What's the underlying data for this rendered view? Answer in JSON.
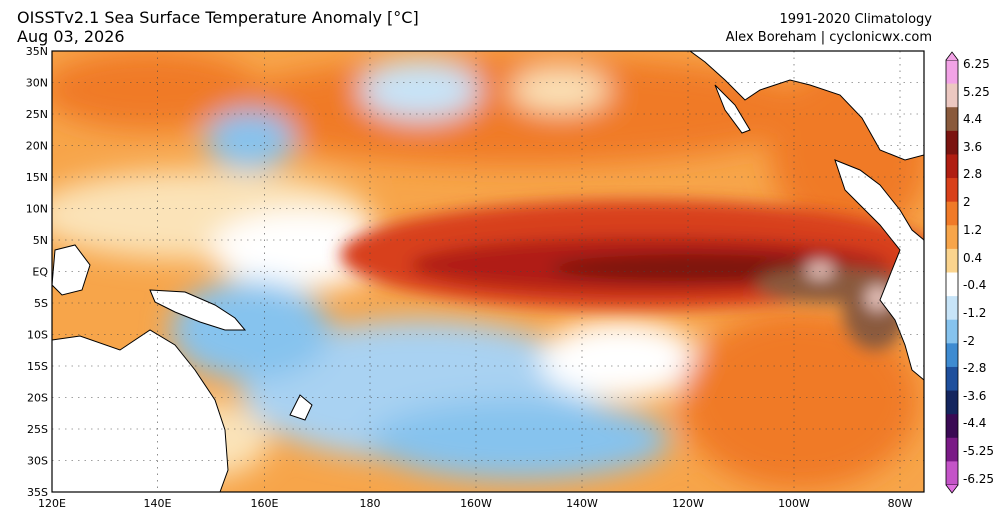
{
  "header": {
    "title": "OISSTv2.1 Sea Surface Temperature Anomaly [°C]",
    "date": "Aug 03, 2026",
    "climatology": "1991-2020 Climatology",
    "credit": "Alex Boreham | cyclonicwx.com"
  },
  "axes": {
    "lat_labels": [
      "35N",
      "30N",
      "25N",
      "20N",
      "15N",
      "10N",
      "5N",
      "EQ",
      "5S",
      "10S",
      "15S",
      "20S",
      "25S",
      "30S",
      "35S"
    ],
    "lon_labels": [
      "120E",
      "140E",
      "160E",
      "180",
      "160W",
      "140W",
      "120W",
      "100W",
      "80W"
    ]
  },
  "colorbar": {
    "labels": [
      "6.25",
      "5.25",
      "4.4",
      "3.6",
      "2.8",
      "2",
      "1.2",
      "0.4",
      "-0.4",
      "-1.2",
      "-2",
      "-2.8",
      "-3.6",
      "-4.4",
      "-5.25",
      "-6.25"
    ],
    "colors": [
      "#f2a3e6",
      "#ecc8c1",
      "#8a5a3c",
      "#7b1410",
      "#b01e12",
      "#d8401a",
      "#f07a28",
      "#f7a54a",
      "#fbd48e",
      "#ffffff",
      "#c7e4f8",
      "#86c3ee",
      "#3e8bd1",
      "#1e4f9c",
      "#14255e",
      "#3a0a54",
      "#7a1a86",
      "#c454c8"
    ]
  }
}
